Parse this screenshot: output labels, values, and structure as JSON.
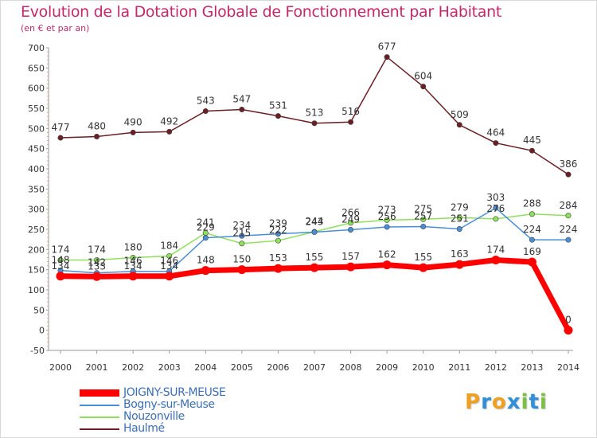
{
  "chart_data": {
    "type": "line",
    "title": "Evolution de la Dotation Globale de Fonctionnement par Habitant",
    "subtitle": "(en € et par an)",
    "x": [
      "2000",
      "2001",
      "2002",
      "2003",
      "2004",
      "2005",
      "2006",
      "2007",
      "2008",
      "2009",
      "2010",
      "2011",
      "2012",
      "2013",
      "2014"
    ],
    "y_ticks": [
      "700",
      "650",
      "600",
      "550",
      "500",
      "450",
      "400",
      "350",
      "300",
      "250",
      "200",
      "150",
      "100",
      "50",
      "0",
      "-50"
    ],
    "ylim": [
      -50,
      700
    ],
    "grid": false,
    "legend_position": "bottom-left",
    "series": [
      {
        "name": "Haulmé",
        "color": "#6b1e24",
        "values": [
          477,
          480,
          490,
          492,
          543,
          547,
          531,
          513,
          516,
          677,
          604,
          509,
          464,
          445,
          386
        ],
        "labels": [
          "477",
          "480",
          "490",
          "492",
          "543",
          "547",
          "531",
          "513",
          "516",
          "677",
          "604",
          "509",
          "464",
          "445",
          "386"
        ]
      },
      {
        "name": "Nouzonville",
        "color": "#8fe05c",
        "values": [
          174,
          174,
          180,
          184,
          241,
          215,
          222,
          244,
          266,
          273,
          275,
          279,
          276,
          288,
          284
        ],
        "labels": [
          "174",
          "174",
          "180",
          "184",
          "241",
          "215",
          "222",
          "244",
          "266",
          "273",
          "275",
          "279",
          "276",
          "288",
          "284"
        ]
      },
      {
        "name": "Bogny-sur-Meuse",
        "color": "#4a8ed6",
        "values": [
          148,
          142,
          146,
          146,
          229,
          234,
          239,
          243,
          249,
          256,
          257,
          251,
          303,
          224,
          224
        ],
        "labels": [
          "148",
          "142",
          "146",
          "146",
          "229",
          "234",
          "239",
          "243",
          "249",
          "256",
          "257",
          "251",
          "303",
          "224",
          "224"
        ]
      },
      {
        "name": "JOIGNY-SUR-MEUSE",
        "color": "#ff0000",
        "values": [
          134,
          133,
          134,
          134,
          148,
          150,
          153,
          155,
          157,
          162,
          155,
          163,
          174,
          169,
          0
        ],
        "labels": [
          "134",
          "133",
          "134",
          "134",
          "148",
          "150",
          "153",
          "155",
          "157",
          "162",
          "155",
          "163",
          "174",
          "169",
          "0"
        ]
      }
    ]
  },
  "legend": {
    "items": [
      {
        "label": "JOIGNY-SUR-MEUSE",
        "color": "#ff0000"
      },
      {
        "label": "Bogny-sur-Meuse",
        "color": "#4a8ed6"
      },
      {
        "label": "Nouzonville",
        "color": "#8fe05c"
      },
      {
        "label": "Haulmé",
        "color": "#6b1e24"
      }
    ]
  },
  "logo": {
    "text": "Proxiti",
    "letters": [
      {
        "char": "P",
        "color": "#f0a020"
      },
      {
        "char": "r",
        "color": "#2f8fd8"
      },
      {
        "char": "o",
        "color": "#f0a020"
      },
      {
        "char": "x",
        "color": "#2f8fd8"
      },
      {
        "char": "i",
        "color": "#7bc043"
      },
      {
        "char": "t",
        "color": "#2f8fd8"
      },
      {
        "char": "i",
        "color": "#7bc043"
      }
    ]
  }
}
